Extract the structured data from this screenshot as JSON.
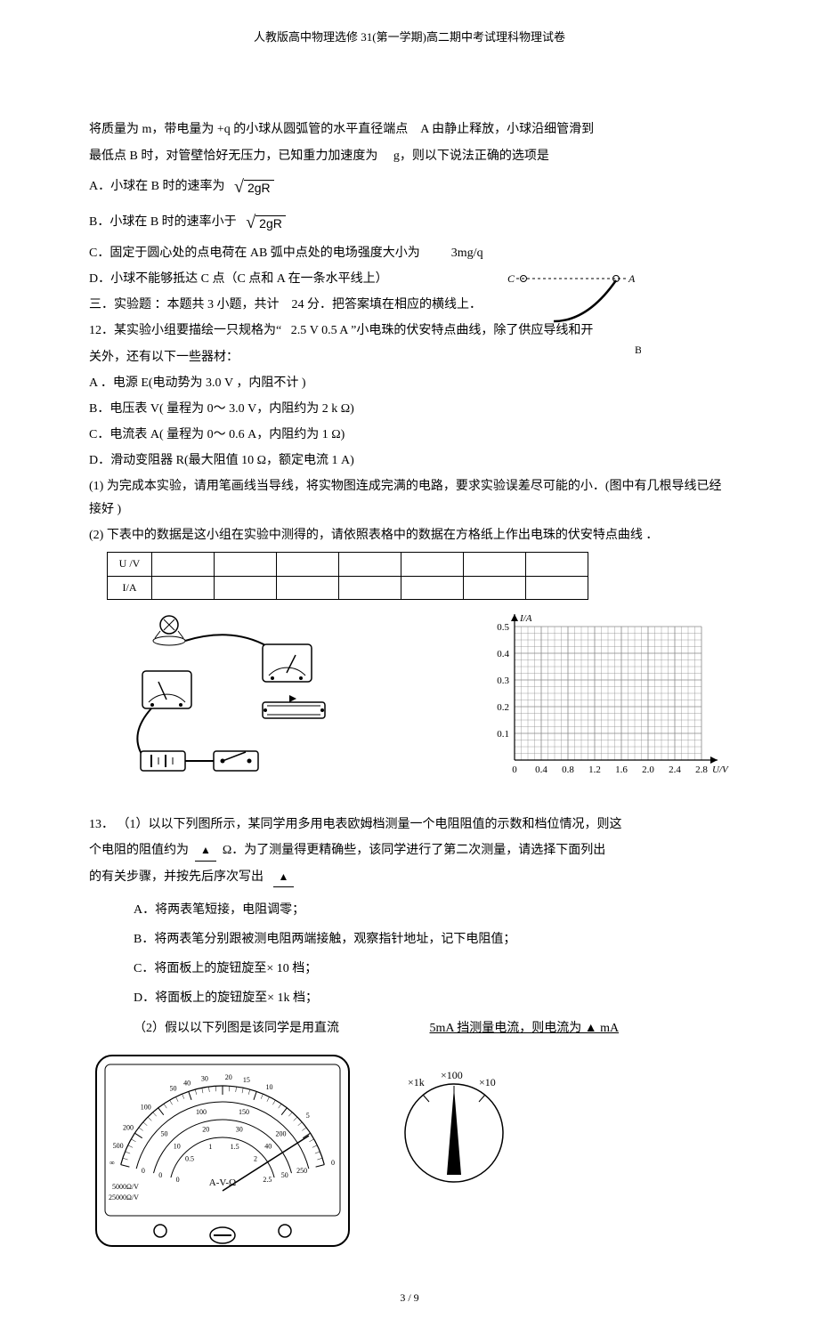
{
  "header": "人教版高中物理选修 31(第一学期)高二期中考试理科物理试卷",
  "intro": {
    "line1_a": "将质量为 m，带电量为 +q 的小球从圆弧管的水平直径端点",
    "line1_b": "A 由静止释放，小球沿细管滑到",
    "line2_a": "最低点 B 时，对管壁恰好无压力，已知重力加速度为",
    "line2_b": "g，则以下说法正确的选项是"
  },
  "q11": {
    "A_pre": "A．小球在 B 时的速率为",
    "A_sqrt": "2gR",
    "B_pre": "B．小球在 B 时的速率小于",
    "B_sqrt": "2gR",
    "C_pre": "C．固定于圆心处的点电荷在 AB 弧中点处的电场强度大小为",
    "C_val": "3mg/q",
    "D": "D．小球不能够抵达 C 点（C 点和 A 在一条水平线上）",
    "arc_labels": {
      "C": "C",
      "A": "A",
      "B": "B"
    }
  },
  "section3": {
    "title": "三．实验题 ：本题共 3 小题，共计",
    "points": "24 分．把答案填在相应的横线上．"
  },
  "q12": {
    "stem_a": "12．某实验小组要描绘一只规格为“",
    "spec": "2.5 V  0.5 A",
    "stem_b": "”小电珠的伏安特点曲线，除了供应导线和开",
    "stem_c": "关外，还有以下一些器材：",
    "A": "A ．电源 E(电动势为  3.0 V ，内阻不计  )",
    "B": "B．电压表  V( 量程为 0～ 3.0 V，内阻约为  2 k Ω)",
    "C": "C．电流表  A( 量程为 0～ 0.6 A，内阻约为  1 Ω)",
    "D": "D．滑动变阻器  R(最大阻值 10 Ω，额定电流 1 A)",
    "p1": "(1) 为完成本实验，请用笔画线当导线，将实物图连成完满的电路，要求实验误差尽可能的小．(图中有几根导线已经接好 )",
    "p2": " (2) 下表中的数据是这小组在实验中测得的，请依照表格中的数据在方格纸上作出电珠的伏安特点曲线 ．",
    "table": {
      "row1": "U /V",
      "row2": "I/A",
      "cols": 7
    },
    "chart": {
      "ylabel": "I/A",
      "xlabel": "U/V",
      "yticks": [
        "0.5",
        "0.4",
        "0.3",
        "0.2",
        "0.1"
      ],
      "xticks": [
        "0",
        "0.4",
        "0.8",
        "1.2",
        "1.6",
        "2.0",
        "2.4",
        "2.8"
      ],
      "grid_color": "#888888",
      "axis_color": "#000000",
      "bg": "#ffffff",
      "x_minor": 4,
      "y_minor": 4
    }
  },
  "q13": {
    "stem_a": "13． （1）以以下列图所示，某同学用多用电表欧姆档测量一个电阻阻值的示数和档位情况，则这",
    "stem_b_pre": "个电阻的阻值约为",
    "stem_b_unit": "Ω．为了测量得更精确些，该同学进行了第二次测量，请选择下面列出",
    "stem_c_pre": "的有关步骤，并按先后序次写出",
    "A": "A．将两表笔短接，电阻调零；",
    "B": "B．将两表笔分别跟被测电阻两端接触，观察指针地址，记下电阻值；",
    "C": "C．将面板上的旋钮旋至×  10 档；",
    "D": "D．将面板上的旋钮旋至×  1k 档；",
    "p2_a": "（2）假以以下列图是该同学是用直流",
    "p2_b": "5mA 挡测量电流，则电流为 ▲ mA",
    "selector": {
      "x1k": "×1k",
      "x100": "×100",
      "x10": "×10"
    },
    "meter": {
      "label_center": "A-V-Ω",
      "left_res1": "5000Ω/V",
      "left_res2": "25000Ω/V",
      "ohm_scale": [
        "∞",
        "500",
        "200",
        "100",
        "50",
        "40",
        "30",
        "20",
        "15",
        "10",
        "5",
        "0"
      ],
      "mid_scale": [
        "0",
        "50",
        "100",
        "150",
        "200",
        "250"
      ],
      "bot_scale": [
        "0",
        "10",
        "20",
        "30",
        "40",
        "50"
      ],
      "av_scale": [
        "0",
        "0.5",
        "1",
        "1.5",
        "2",
        "2.5"
      ]
    }
  },
  "footer": "3 / 9"
}
